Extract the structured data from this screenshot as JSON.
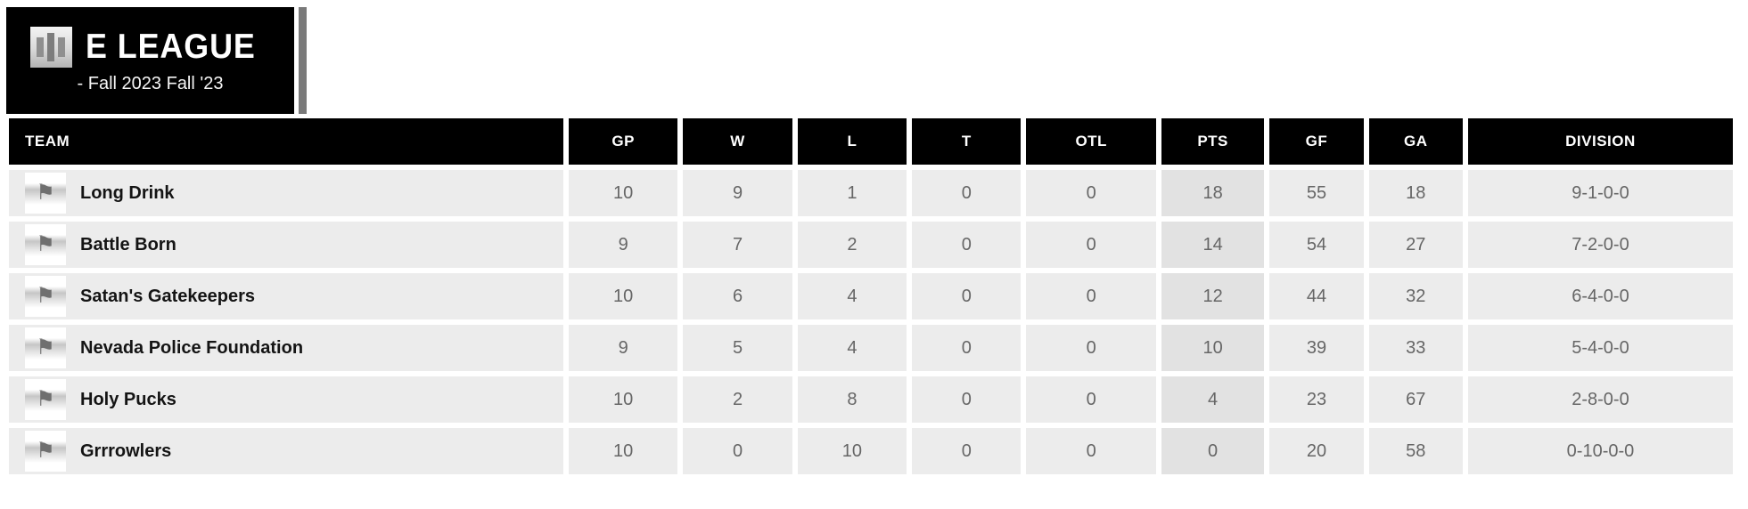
{
  "league_header": {
    "name": "E LEAGUE",
    "season": "- Fall 2023 Fall '23",
    "logo_icon": "vertical-bars-logo"
  },
  "colors": {
    "header_bg": "#000000",
    "header_text": "#ffffff",
    "row_bg": "#ececec",
    "pts_column_bg": "#e2e2e2",
    "value_text": "#666666",
    "team_text": "#141414",
    "accent_bar": "#7a7a7a"
  },
  "icons": {
    "team_flag": "flag-icon",
    "league_logo": "bars-logo-icon"
  },
  "table": {
    "columns": [
      {
        "key": "team",
        "label": "TEAM"
      },
      {
        "key": "gp",
        "label": "GP"
      },
      {
        "key": "w",
        "label": "W"
      },
      {
        "key": "l",
        "label": "L"
      },
      {
        "key": "t",
        "label": "T"
      },
      {
        "key": "otl",
        "label": "OTL"
      },
      {
        "key": "pts",
        "label": "PTS"
      },
      {
        "key": "gf",
        "label": "GF"
      },
      {
        "key": "ga",
        "label": "GA"
      },
      {
        "key": "division",
        "label": "DIVISION"
      }
    ],
    "rows": [
      {
        "team": "Long Drink",
        "gp": "10",
        "w": "9",
        "l": "1",
        "t": "0",
        "otl": "0",
        "pts": "18",
        "gf": "55",
        "ga": "18",
        "division": "9-1-0-0"
      },
      {
        "team": "Battle Born",
        "gp": "9",
        "w": "7",
        "l": "2",
        "t": "0",
        "otl": "0",
        "pts": "14",
        "gf": "54",
        "ga": "27",
        "division": "7-2-0-0"
      },
      {
        "team": "Satan's Gatekeepers",
        "gp": "10",
        "w": "6",
        "l": "4",
        "t": "0",
        "otl": "0",
        "pts": "12",
        "gf": "44",
        "ga": "32",
        "division": "6-4-0-0"
      },
      {
        "team": "Nevada Police Foundation",
        "gp": "9",
        "w": "5",
        "l": "4",
        "t": "0",
        "otl": "0",
        "pts": "10",
        "gf": "39",
        "ga": "33",
        "division": "5-4-0-0"
      },
      {
        "team": "Holy Pucks",
        "gp": "10",
        "w": "2",
        "l": "8",
        "t": "0",
        "otl": "0",
        "pts": "4",
        "gf": "23",
        "ga": "67",
        "division": "2-8-0-0"
      },
      {
        "team": "Grrrowlers",
        "gp": "10",
        "w": "0",
        "l": "10",
        "t": "0",
        "otl": "0",
        "pts": "0",
        "gf": "20",
        "ga": "58",
        "division": "0-10-0-0"
      }
    ],
    "flag_glyph": "⚑"
  }
}
